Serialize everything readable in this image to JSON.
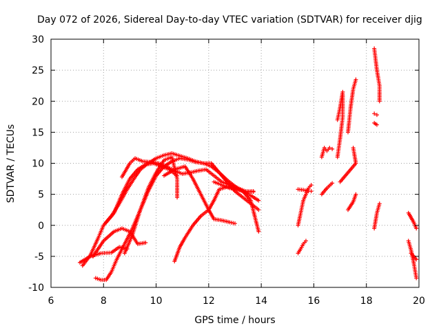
{
  "chart_data": {
    "type": "scatter",
    "title": "Day 072 of 2026, Sidereal Day-to-day VTEC variation (SDTVAR) for receiver djig",
    "xlabel": "GPS time / hours",
    "ylabel": "SDTVAR / TECUs",
    "xlim": [
      6,
      20
    ],
    "ylim": [
      -10,
      30
    ],
    "xticks": [
      6,
      8,
      10,
      12,
      14,
      16,
      18,
      20
    ],
    "yticks": [
      -10,
      -5,
      0,
      5,
      10,
      15,
      20,
      25,
      30
    ],
    "xtick_labels": [
      "6",
      "8",
      "10",
      "12",
      "14",
      "16",
      "18",
      "20"
    ],
    "ytick_labels": [
      "-10",
      "-5",
      "0",
      "5",
      "10",
      "15",
      "20",
      "25",
      "30"
    ],
    "grid": true,
    "marker": "plus",
    "color": "#ff0000",
    "tracks": [
      [
        [
          7.2,
          -6.5
        ],
        [
          7.5,
          -4.8
        ],
        [
          7.8,
          -2.0
        ],
        [
          8.0,
          0.0
        ],
        [
          8.3,
          1.5
        ],
        [
          8.6,
          3.5
        ],
        [
          8.9,
          5.8
        ],
        [
          9.2,
          7.8
        ],
        [
          9.4,
          9.0
        ],
        [
          9.7,
          10.0
        ],
        [
          10.0,
          10.8
        ],
        [
          10.3,
          11.3
        ],
        [
          10.6,
          11.6
        ],
        [
          10.9,
          11.2
        ],
        [
          11.2,
          10.8
        ],
        [
          11.5,
          10.3
        ],
        [
          11.8,
          10.0
        ],
        [
          12.1,
          9.5
        ],
        [
          12.4,
          8.5
        ],
        [
          12.7,
          7.3
        ],
        [
          13.0,
          6.3
        ],
        [
          13.3,
          5.5
        ],
        [
          13.6,
          4.8
        ],
        [
          13.9,
          4.0
        ]
      ],
      [
        [
          7.1,
          -6.0
        ],
        [
          7.5,
          -5.0
        ],
        [
          7.9,
          -4.5
        ],
        [
          8.3,
          -4.4
        ],
        [
          8.6,
          -3.5
        ],
        [
          8.9,
          -3.8
        ]
      ],
      [
        [
          7.7,
          -8.5
        ],
        [
          7.9,
          -8.8
        ],
        [
          8.1,
          -8.8
        ],
        [
          8.3,
          -7.5
        ],
        [
          8.5,
          -5.5
        ],
        [
          8.8,
          -3.0
        ],
        [
          9.1,
          -0.5
        ],
        [
          9.4,
          2.5
        ],
        [
          9.7,
          5.5
        ],
        [
          10.0,
          8.0
        ],
        [
          10.3,
          9.5
        ],
        [
          10.6,
          10.3
        ],
        [
          10.9,
          10.8
        ],
        [
          11.2,
          10.6
        ],
        [
          11.5,
          10.2
        ],
        [
          11.8,
          10.0
        ],
        [
          12.1,
          10.0
        ],
        [
          12.4,
          8.5
        ],
        [
          12.7,
          7.0
        ],
        [
          13.0,
          5.5
        ],
        [
          13.3,
          4.5
        ],
        [
          13.6,
          3.5
        ],
        [
          13.9,
          2.5
        ]
      ],
      [
        [
          8.1,
          0.5
        ],
        [
          8.4,
          2.0
        ],
        [
          8.7,
          5.0
        ],
        [
          9.0,
          7.5
        ],
        [
          9.3,
          9.0
        ],
        [
          9.6,
          9.8
        ],
        [
          9.9,
          10.0
        ],
        [
          10.2,
          9.5
        ],
        [
          10.5,
          9.0
        ],
        [
          10.8,
          8.0
        ]
      ],
      [
        [
          7.6,
          -5.0
        ],
        [
          8.0,
          -2.5
        ],
        [
          8.4,
          -1.0
        ],
        [
          8.7,
          -0.5
        ],
        [
          9.0,
          -1.0
        ],
        [
          9.3,
          -3.0
        ],
        [
          9.6,
          -2.8
        ]
      ],
      [
        [
          8.7,
          7.8
        ],
        [
          9.0,
          10.0
        ],
        [
          9.2,
          10.8
        ],
        [
          9.5,
          10.3
        ],
        [
          9.8,
          10.2
        ],
        [
          10.1,
          10.0
        ],
        [
          10.4,
          9.5
        ],
        [
          10.7,
          8.8
        ],
        [
          11.0,
          8.3
        ],
        [
          11.3,
          8.5
        ],
        [
          11.6,
          8.8
        ],
        [
          11.9,
          9.0
        ],
        [
          12.2,
          8.0
        ],
        [
          12.5,
          7.0
        ],
        [
          12.8,
          6.5
        ],
        [
          13.1,
          6.0
        ],
        [
          13.4,
          5.5
        ],
        [
          13.7,
          5.4
        ]
      ],
      [
        [
          8.8,
          -4.5
        ],
        [
          9.1,
          -1.5
        ],
        [
          9.4,
          2.5
        ],
        [
          9.7,
          6.0
        ],
        [
          10.0,
          8.5
        ],
        [
          10.3,
          10.5
        ],
        [
          10.6,
          11.0
        ],
        [
          10.8,
          7.5
        ],
        [
          10.8,
          4.5
        ]
      ],
      [
        [
          10.7,
          -5.8
        ],
        [
          10.9,
          -3.5
        ],
        [
          11.1,
          -2.0
        ],
        [
          11.4,
          0.0
        ],
        [
          11.7,
          1.5
        ],
        [
          12.0,
          2.5
        ],
        [
          12.2,
          4.0
        ],
        [
          12.4,
          5.8
        ],
        [
          12.7,
          6.2
        ],
        [
          13.0,
          6.0
        ],
        [
          13.3,
          5.5
        ],
        [
          13.6,
          4.0
        ],
        [
          13.9,
          -1.0
        ]
      ],
      [
        [
          10.3,
          8.0
        ],
        [
          10.7,
          9.0
        ],
        [
          11.1,
          9.5
        ],
        [
          11.4,
          7.5
        ],
        [
          11.7,
          5.0
        ],
        [
          12.0,
          2.5
        ],
        [
          12.2,
          1.0
        ],
        [
          12.5,
          0.8
        ],
        [
          12.8,
          0.5
        ],
        [
          13.0,
          0.3
        ]
      ],
      [
        [
          12.2,
          7.0
        ],
        [
          12.5,
          6.5
        ],
        [
          12.8,
          6.0
        ],
        [
          13.1,
          5.8
        ],
        [
          13.4,
          5.4
        ],
        [
          13.7,
          5.5
        ]
      ],
      [
        [
          15.4,
          0.0
        ],
        [
          15.5,
          2.0
        ],
        [
          15.6,
          4.0
        ],
        [
          15.7,
          5.0
        ],
        [
          15.8,
          6.0
        ],
        [
          15.9,
          6.5
        ]
      ],
      [
        [
          15.4,
          5.8
        ],
        [
          15.6,
          5.7
        ],
        [
          15.8,
          5.5
        ],
        [
          15.9,
          5.5
        ]
      ],
      [
        [
          15.4,
          -4.5
        ],
        [
          15.5,
          -3.8
        ],
        [
          15.6,
          -3.0
        ],
        [
          15.7,
          -2.5
        ]
      ],
      [
        [
          16.3,
          11.0
        ],
        [
          16.4,
          12.5
        ],
        [
          16.5,
          12.0
        ],
        [
          16.6,
          12.5
        ],
        [
          16.7,
          12.3
        ]
      ],
      [
        [
          16.3,
          5.0
        ],
        [
          16.5,
          6.0
        ],
        [
          16.7,
          6.8
        ]
      ],
      [
        [
          16.9,
          17.0
        ],
        [
          17.0,
          19.0
        ],
        [
          17.1,
          21.5
        ]
      ],
      [
        [
          16.9,
          11.0
        ],
        [
          17.0,
          14.0
        ],
        [
          17.1,
          17.5
        ],
        [
          17.1,
          21.0
        ]
      ],
      [
        [
          17.0,
          7.0
        ],
        [
          17.2,
          8.0
        ],
        [
          17.4,
          9.0
        ],
        [
          17.6,
          10.0
        ],
        [
          17.5,
          12.5
        ]
      ],
      [
        [
          17.3,
          15.0
        ],
        [
          17.4,
          19.0
        ],
        [
          17.5,
          22.0
        ],
        [
          17.6,
          23.5
        ]
      ],
      [
        [
          17.3,
          2.5
        ],
        [
          17.5,
          3.8
        ],
        [
          17.6,
          5.0
        ]
      ],
      [
        [
          18.3,
          28.5
        ],
        [
          18.4,
          25.0
        ],
        [
          18.5,
          22.5
        ],
        [
          18.5,
          20.0
        ]
      ],
      [
        [
          18.3,
          18.0
        ],
        [
          18.4,
          17.8
        ]
      ],
      [
        [
          18.3,
          16.5
        ],
        [
          18.4,
          16.2
        ]
      ],
      [
        [
          18.3,
          -0.5
        ],
        [
          18.4,
          2.0
        ],
        [
          18.5,
          3.5
        ]
      ],
      [
        [
          19.6,
          2.0
        ],
        [
          19.8,
          0.5
        ],
        [
          19.9,
          -0.5
        ]
      ],
      [
        [
          19.6,
          -2.5
        ],
        [
          19.7,
          -4.0
        ],
        [
          19.8,
          -6.0
        ],
        [
          19.9,
          -8.5
        ]
      ],
      [
        [
          19.7,
          -4.5
        ],
        [
          19.9,
          -5.5
        ]
      ]
    ]
  }
}
